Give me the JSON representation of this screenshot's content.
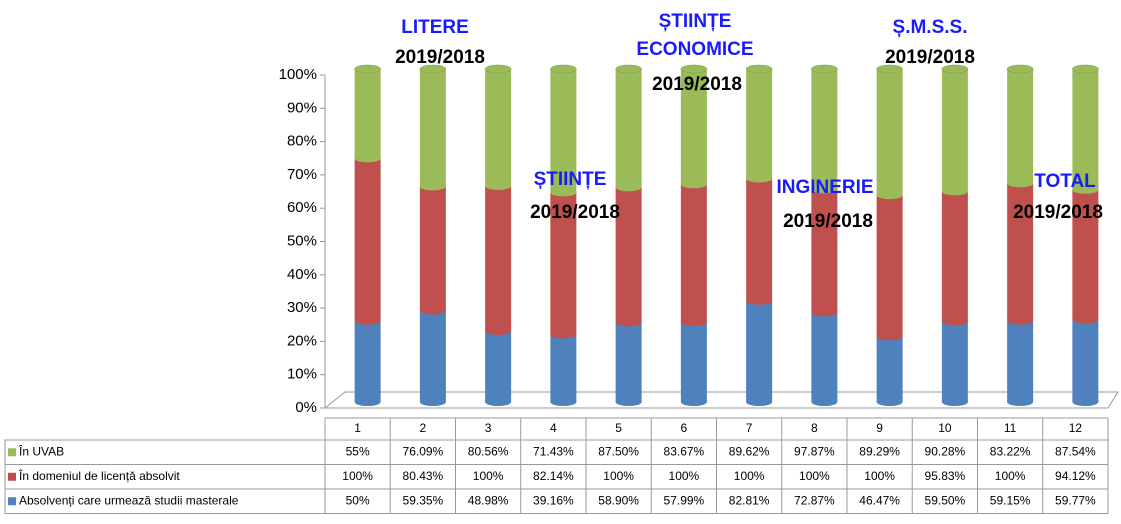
{
  "chart_data": {
    "type": "bar",
    "stacking": "percent",
    "categories": [
      "1",
      "2",
      "3",
      "4",
      "5",
      "6",
      "7",
      "8",
      "9",
      "10",
      "11",
      "12"
    ],
    "series": [
      {
        "name": "Absolvenți care urmează studii masterale",
        "color": "#4f81bd",
        "values": [
          50,
          59.35,
          48.98,
          39.16,
          58.9,
          57.99,
          82.81,
          72.87,
          46.47,
          59.5,
          59.15,
          59.77
        ],
        "value_labels": [
          "50%",
          "59.35%",
          "48.98%",
          "39.16%",
          "58.90%",
          "57.99%",
          "82.81%",
          "72.87%",
          "46.47%",
          "59.50%",
          "59.15%",
          "59.77%"
        ]
      },
      {
        "name": "În domeniul de licență absolvit",
        "color": "#c0504d",
        "values": [
          100,
          80.43,
          100,
          82.14,
          100,
          100,
          100,
          100,
          100,
          95.83,
          100,
          94.12
        ],
        "value_labels": [
          "100%",
          "80.43%",
          "100%",
          "82.14%",
          "100%",
          "100%",
          "100%",
          "100%",
          "100%",
          "95.83%",
          "100%",
          "94.12%"
        ]
      },
      {
        "name": "În UVAB",
        "color": "#9bbb59",
        "values": [
          55,
          76.09,
          80.56,
          71.43,
          87.5,
          83.67,
          89.62,
          97.87,
          89.29,
          90.28,
          83.22,
          87.54
        ],
        "value_labels": [
          "55%",
          "76.09%",
          "80.56%",
          "71.43%",
          "87.50%",
          "83.67%",
          "89.62%",
          "97.87%",
          "89.29%",
          "90.28%",
          "83.22%",
          "87.54%"
        ]
      }
    ],
    "ylim": [
      0,
      100
    ],
    "yticks": [
      {
        "value": 0,
        "label": "0%"
      },
      {
        "value": 10,
        "label": "10%"
      },
      {
        "value": 20,
        "label": "20%"
      },
      {
        "value": 30,
        "label": "30%"
      },
      {
        "value": 40,
        "label": "40%"
      },
      {
        "value": 50,
        "label": "50%"
      },
      {
        "value": 60,
        "label": "60%"
      },
      {
        "value": 70,
        "label": "70%"
      },
      {
        "value": 80,
        "label": "80%"
      },
      {
        "value": 90,
        "label": "90%"
      },
      {
        "value": 100,
        "label": "100%"
      }
    ],
    "annotations": [
      {
        "lines": [
          "LITERE"
        ],
        "period": "2019/2018"
      },
      {
        "lines": [
          "ȘTIINȚE"
        ],
        "period": "2019/2018"
      },
      {
        "lines": [
          "ȘTIINȚE",
          "ECONOMICE"
        ],
        "period": "2019/2018"
      },
      {
        "lines": [
          "INGINERIE"
        ],
        "period": "2019/2018"
      },
      {
        "lines": [
          "Ș.M.S.S."
        ],
        "period": "2019/2018"
      },
      {
        "lines": [
          "TOTAL"
        ],
        "period": "2019/2018"
      }
    ]
  }
}
